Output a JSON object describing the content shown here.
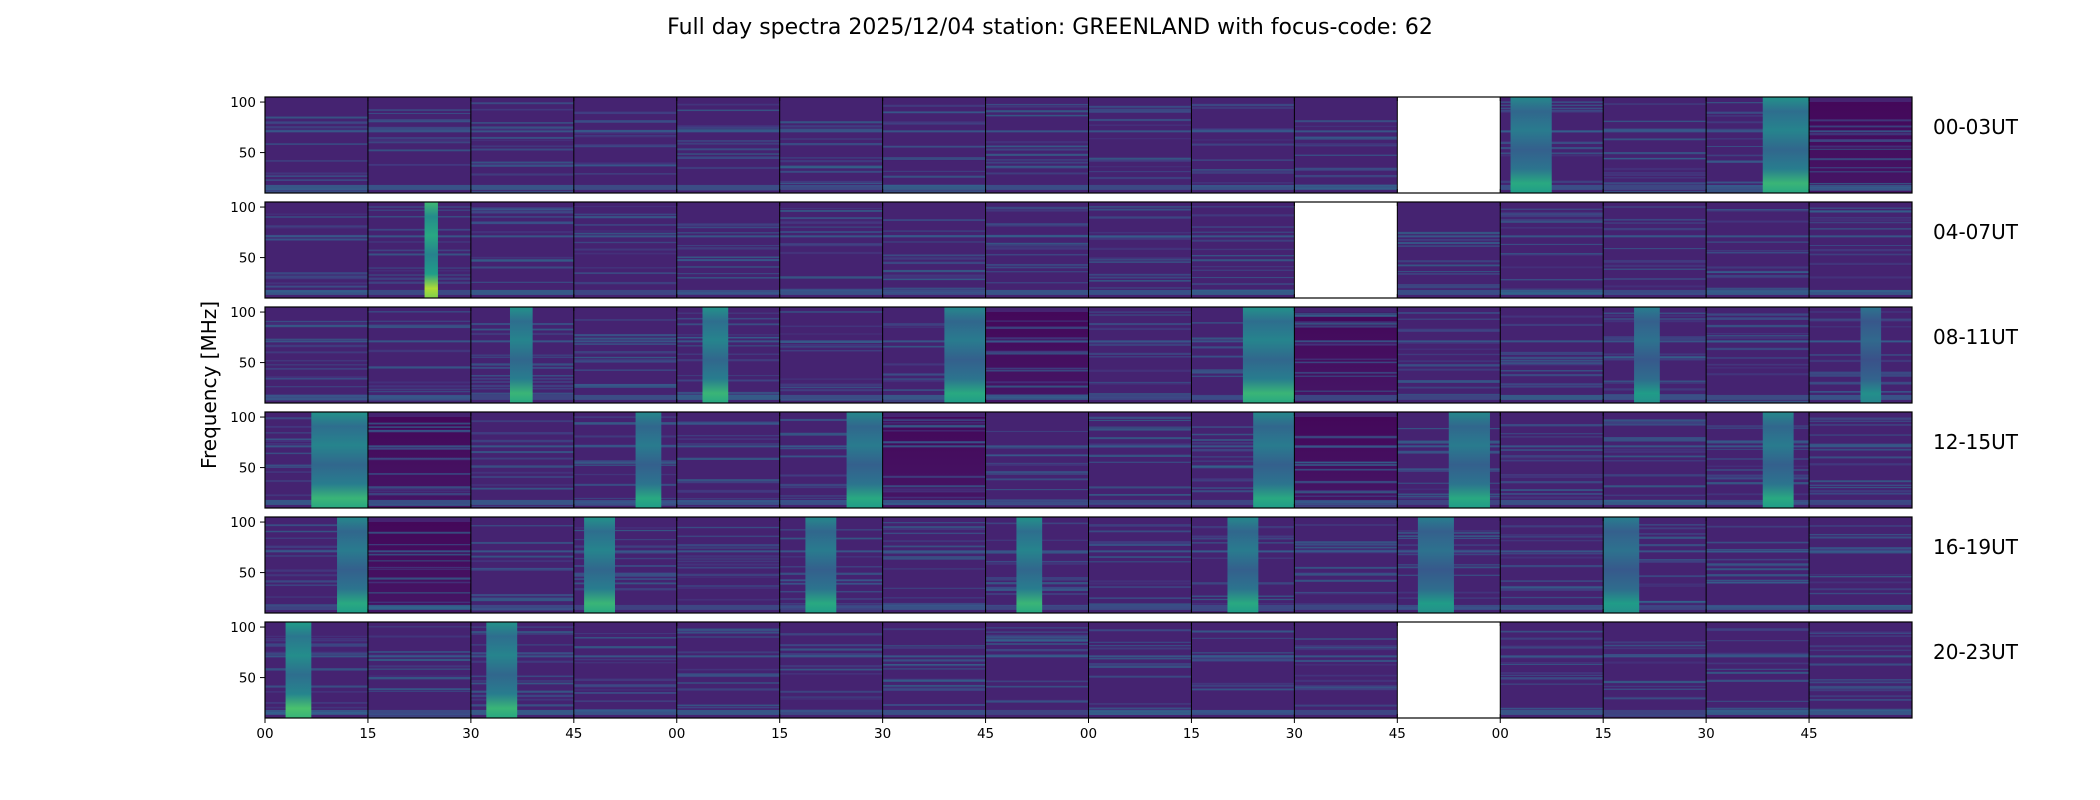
{
  "chart_data": {
    "type": "heatmap",
    "title": "Full day spectra 2025/12/04 station: GREENLAND with focus-code: 62",
    "ylabel": "Frequency [MHz]",
    "xlabel": "",
    "ylim": [
      10,
      105
    ],
    "yticks": [
      50,
      100
    ],
    "ytick_labels": [
      "50",
      "100"
    ],
    "xtick_labels": [
      "00",
      "15",
      "30",
      "45",
      "00",
      "15",
      "30",
      "45",
      "00",
      "15",
      "30",
      "45",
      "00",
      "15",
      "30",
      "45"
    ],
    "segments_per_row": 16,
    "segment_minutes": 15,
    "colormap": "viridis",
    "colormap_colors": [
      "#440154",
      "#46327e",
      "#365c8d",
      "#277f8e",
      "#1fa187",
      "#4ac16d",
      "#a0da39",
      "#fde725"
    ],
    "rows": [
      {
        "label": "00-03UT",
        "missing": [
          11
        ],
        "bursts": [
          {
            "seg": 12,
            "start": 0.1,
            "end": 0.5,
            "level": 0.55
          },
          {
            "seg": 14,
            "start": 0.55,
            "end": 1.0,
            "level": 0.6
          }
        ],
        "quiet": [
          15
        ]
      },
      {
        "label": "04-07UT",
        "missing": [
          10
        ],
        "bursts": [
          {
            "seg": 1,
            "start": 0.55,
            "end": 0.68,
            "level": 0.8
          }
        ],
        "quiet": []
      },
      {
        "label": "08-11UT",
        "missing": [],
        "bursts": [
          {
            "seg": 2,
            "start": 0.38,
            "end": 0.6,
            "level": 0.6
          },
          {
            "seg": 4,
            "start": 0.25,
            "end": 0.5,
            "level": 0.6
          },
          {
            "seg": 6,
            "start": 0.6,
            "end": 1.0,
            "level": 0.55
          },
          {
            "seg": 9,
            "start": 0.5,
            "end": 1.0,
            "level": 0.6
          },
          {
            "seg": 13,
            "start": 0.3,
            "end": 0.55,
            "level": 0.5
          },
          {
            "seg": 15,
            "start": 0.5,
            "end": 0.7,
            "level": 0.45
          }
        ],
        "quiet": [
          7,
          10
        ]
      },
      {
        "label": "12-15UT",
        "missing": [],
        "bursts": [
          {
            "seg": 0,
            "start": 0.45,
            "end": 1.0,
            "level": 0.6
          },
          {
            "seg": 3,
            "start": 0.6,
            "end": 0.85,
            "level": 0.55
          },
          {
            "seg": 5,
            "start": 0.65,
            "end": 1.0,
            "level": 0.55
          },
          {
            "seg": 9,
            "start": 0.6,
            "end": 1.0,
            "level": 0.55
          },
          {
            "seg": 11,
            "start": 0.5,
            "end": 0.9,
            "level": 0.55
          },
          {
            "seg": 14,
            "start": 0.55,
            "end": 0.85,
            "level": 0.55
          }
        ],
        "quiet": [
          1,
          6,
          10
        ]
      },
      {
        "label": "16-19UT",
        "missing": [],
        "bursts": [
          {
            "seg": 0,
            "start": 0.7,
            "end": 1.0,
            "level": 0.55
          },
          {
            "seg": 3,
            "start": 0.1,
            "end": 0.4,
            "level": 0.6
          },
          {
            "seg": 5,
            "start": 0.25,
            "end": 0.55,
            "level": 0.55
          },
          {
            "seg": 7,
            "start": 0.3,
            "end": 0.55,
            "level": 0.6
          },
          {
            "seg": 9,
            "start": 0.35,
            "end": 0.65,
            "level": 0.55
          },
          {
            "seg": 11,
            "start": 0.2,
            "end": 0.55,
            "level": 0.5
          },
          {
            "seg": 13,
            "start": 0.0,
            "end": 0.35,
            "level": 0.5
          }
        ],
        "quiet": [
          1
        ]
      },
      {
        "label": "20-23UT",
        "missing": [
          11
        ],
        "bursts": [
          {
            "seg": 0,
            "start": 0.2,
            "end": 0.45,
            "level": 0.65
          },
          {
            "seg": 2,
            "start": 0.15,
            "end": 0.45,
            "level": 0.6
          }
        ],
        "quiet": []
      }
    ]
  }
}
